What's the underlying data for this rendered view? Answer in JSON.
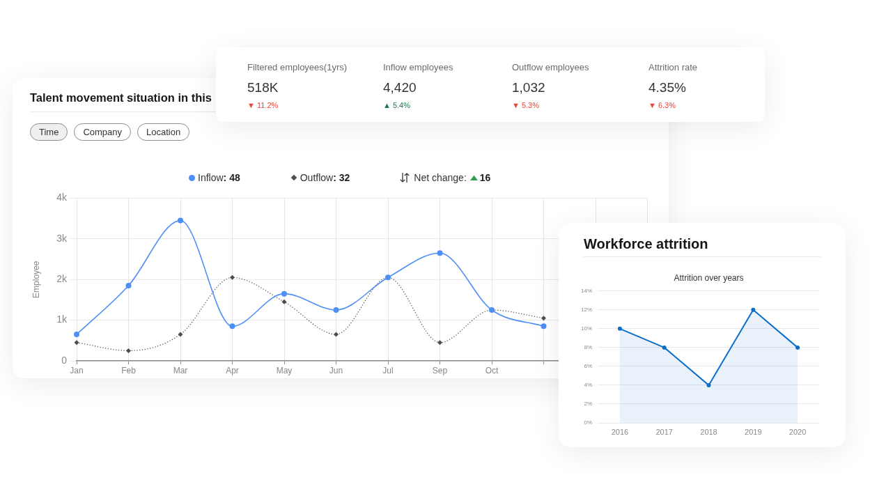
{
  "chart_data": [
    {
      "type": "other",
      "annotations": [
        "Filtered employees(1yrs)",
        "518K",
        "▼ 11.2%",
        "Inflow employees",
        "4,420",
        "▲ 5.4%",
        "Outflow employees",
        "1,032",
        "▼ 5.3%",
        "Attrition rate",
        "4.35%",
        "▼ 6.3%"
      ],
      "colors": [
        "#6b6b6b",
        "#333333",
        "#e8473b",
        "#6b6b6b",
        "#333333",
        "#1d7a4c",
        "#6b6b6b",
        "#333333",
        "#e8473b",
        "#6b6b6b",
        "#333333",
        "#e8473b"
      ]
    },
    {
      "type": "line",
      "title": "Talent movement situation in this",
      "ylabel": "Employee",
      "categories": [
        "Jan",
        "Feb",
        "Mar",
        "Apr",
        "May",
        "Jun",
        "Jul",
        "Sep",
        "Oct",
        null,
        null,
        null
      ],
      "series": [
        {
          "name": "Inflow",
          "color": "#4e8ef7",
          "marker": "circle",
          "line_style": "solid",
          "values": [
            650,
            1850,
            3450,
            850,
            1650,
            1250,
            2050,
            2650,
            1250,
            850,
            null,
            null
          ]
        },
        {
          "name": "Outflow",
          "color": "#4d4d4d",
          "marker": "diamond",
          "line_style": "dotted",
          "values": [
            450,
            250,
            650,
            2050,
            1450,
            650,
            2050,
            450,
            1250,
            1050,
            null,
            null
          ]
        }
      ],
      "ylim": [
        0,
        4000
      ],
      "yticks": [
        0,
        {
          "value": 1000,
          "label": "1k"
        },
        {
          "value": 2000,
          "label": "2k"
        },
        {
          "value": 3000,
          "label": "3k"
        },
        {
          "value": 4000,
          "label": "4k"
        }
      ],
      "grid": true,
      "legend": "top",
      "annotations": [
        "Time",
        "Company",
        "Location",
        ": 48",
        ": 32",
        "Net change:",
        "16"
      ]
    },
    {
      "type": "area",
      "title": "Workforce attrition",
      "subtitle": "Attrition over years",
      "categories": [
        "2016",
        "2017",
        "2018",
        "2019",
        "2020"
      ],
      "series": [
        {
          "color": "#0b6fc9",
          "values": [
            10,
            8,
            4,
            12,
            8
          ]
        }
      ],
      "marker": "circle",
      "ylim": [
        0,
        14
      ],
      "yticks": [
        {
          "value": 0,
          "label": "0%"
        },
        {
          "value": 2,
          "label": "2%"
        },
        {
          "value": 4,
          "label": "4%"
        },
        {
          "value": 6,
          "label": "6%"
        },
        {
          "value": 8,
          "label": "8%"
        },
        {
          "value": 10,
          "label": "10%"
        },
        {
          "value": 12,
          "label": "12%"
        },
        {
          "value": 14,
          "label": "14%"
        }
      ],
      "grid": "y"
    }
  ]
}
